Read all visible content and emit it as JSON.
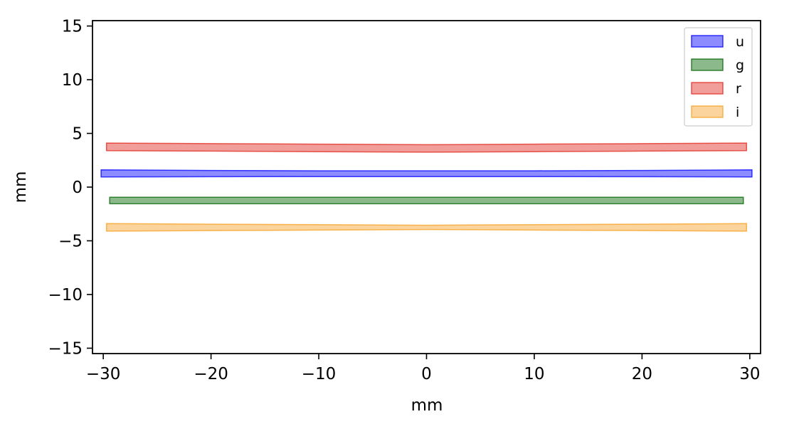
{
  "chart_data": {
    "type": "area",
    "title": "",
    "xlabel": "mm",
    "ylabel": "mm",
    "xlim": [
      -31,
      31
    ],
    "ylim": [
      -15.5,
      15.5
    ],
    "xticks": [
      -30,
      -20,
      -10,
      0,
      10,
      20,
      30
    ],
    "xtick_labels": [
      "−30",
      "−20",
      "−10",
      "0",
      "10",
      "20",
      "30"
    ],
    "yticks": [
      -15,
      -10,
      -5,
      0,
      5,
      10,
      15
    ],
    "ytick_labels": [
      "−15",
      "−10",
      "−5",
      "0",
      "5",
      "10",
      "15"
    ],
    "grid": false,
    "legend_position": "top-right",
    "series": [
      {
        "name": "u",
        "color": "#0000ff",
        "x": [
          -30.2,
          -20,
          -10,
          0,
          10,
          20,
          30.2
        ],
        "y_low": [
          0.95,
          0.97,
          0.98,
          0.98,
          0.98,
          0.97,
          0.95
        ],
        "y_high": [
          1.6,
          1.55,
          1.52,
          1.52,
          1.52,
          1.55,
          1.6
        ]
      },
      {
        "name": "g",
        "color": "#006400",
        "x": [
          -29.4,
          -20,
          -10,
          0,
          10,
          20,
          29.4
        ],
        "y_low": [
          -1.55,
          -1.55,
          -1.55,
          -1.55,
          -1.55,
          -1.55,
          -1.55
        ],
        "y_high": [
          -0.95,
          -0.95,
          -0.95,
          -0.95,
          -0.95,
          -0.95,
          -0.95
        ]
      },
      {
        "name": "r",
        "color": "#e0281e",
        "x": [
          -29.7,
          -20,
          -10,
          0,
          10,
          20,
          29.7
        ],
        "y_low": [
          3.4,
          3.35,
          3.3,
          3.25,
          3.3,
          3.35,
          3.4
        ],
        "y_high": [
          4.1,
          4.05,
          4.0,
          3.95,
          4.0,
          4.05,
          4.1
        ]
      },
      {
        "name": "i",
        "color": "#f5a023",
        "x": [
          -29.7,
          -20,
          -10,
          0,
          10,
          20,
          29.7
        ],
        "y_low": [
          -4.1,
          -4.05,
          -4.0,
          -3.95,
          -4.0,
          -4.05,
          -4.1
        ],
        "y_high": [
          -3.4,
          -3.45,
          -3.5,
          -3.55,
          -3.5,
          -3.45,
          -3.4
        ]
      }
    ]
  }
}
